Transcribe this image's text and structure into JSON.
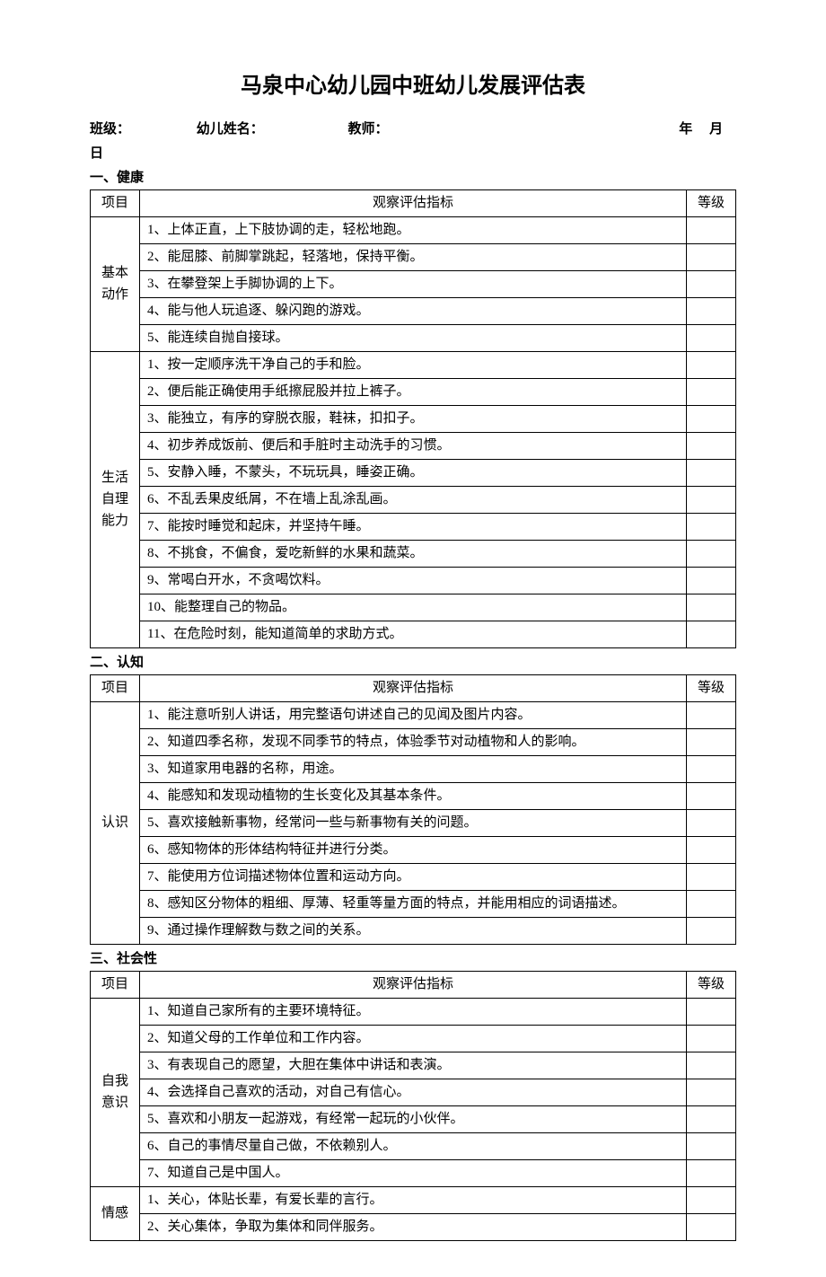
{
  "title": "马泉中心幼儿园中班幼儿发展评估表",
  "info": {
    "class_label": "班级：",
    "name_label": "幼儿姓名：",
    "teacher_label": "教师：",
    "year": "年",
    "month": "月",
    "day": "日"
  },
  "columns": {
    "category": "项目",
    "indicator": "观察评估指标",
    "grade": "等级"
  },
  "sections": [
    {
      "title": "一、健康",
      "groups": [
        {
          "category": "基本\n动作",
          "items": [
            "1、上体正直，上下肢协调的走，轻松地跑。",
            "2、能屈膝、前脚掌跳起，轻落地，保持平衡。",
            "3、在攀登架上手脚协调的上下。",
            "4、能与他人玩追逐、躲闪跑的游戏。",
            "5、能连续自抛自接球。"
          ]
        },
        {
          "category": "生活\n自理\n能力",
          "items": [
            "1、按一定顺序洗干净自己的手和脸。",
            "2、便后能正确使用手纸擦屁股并拉上裤子。",
            "3、能独立，有序的穿脱衣服，鞋袜，扣扣子。",
            "4、初步养成饭前、便后和手脏时主动洗手的习惯。",
            "5、安静入睡，不蒙头，不玩玩具，睡姿正确。",
            "6、不乱丢果皮纸屑，不在墙上乱涂乱画。",
            "7、能按时睡觉和起床，并坚持午睡。",
            "8、不挑食，不偏食，爱吃新鲜的水果和蔬菜。",
            "9、常喝白开水，不贪喝饮料。",
            "10、能整理自己的物品。",
            "11、在危险时刻，能知道简单的求助方式。"
          ]
        }
      ]
    },
    {
      "title": "二、认知",
      "groups": [
        {
          "category": "认识",
          "items": [
            "1、能注意听别人讲话，用完整语句讲述自己的见闻及图片内容。",
            "2、知道四季名称，发现不同季节的特点，体验季节对动植物和人的影响。",
            "3、知道家用电器的名称，用途。",
            "4、能感知和发现动植物的生长变化及其基本条件。",
            "5、喜欢接触新事物，经常问一些与新事物有关的问题。",
            "6、感知物体的形体结构特征并进行分类。",
            "7、能使用方位词描述物体位置和运动方向。",
            "8、感知区分物体的粗细、厚薄、轻重等量方面的特点，并能用相应的词语描述。",
            "9、通过操作理解数与数之间的关系。"
          ]
        }
      ]
    },
    {
      "title": "三、社会性",
      "groups": [
        {
          "category": "自我\n意识",
          "items": [
            "1、知道自己家所有的主要环境特征。",
            "2、知道父母的工作单位和工作内容。",
            "3、有表现自己的愿望，大胆在集体中讲话和表演。",
            "4、会选择自己喜欢的活动，对自己有信心。",
            "5、喜欢和小朋友一起游戏，有经常一起玩的小伙伴。",
            "6、自己的事情尽量自己做，不依赖别人。",
            "7、知道自己是中国人。"
          ]
        },
        {
          "category": "情感",
          "items": [
            "1、关心，体贴长辈，有爱长辈的言行。",
            "2、关心集体，争取为集体和同伴服务。"
          ]
        }
      ]
    }
  ]
}
